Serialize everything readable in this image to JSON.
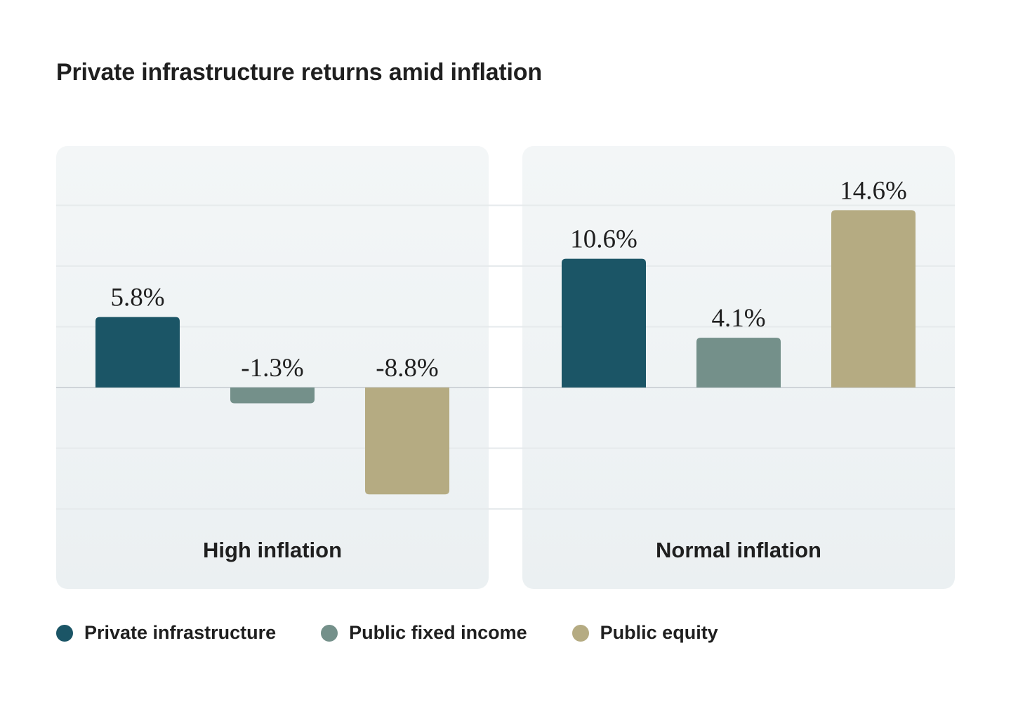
{
  "chart_data": {
    "type": "bar",
    "title": "Private infrastructure returns amid inflation",
    "categories": [
      "High inflation",
      "Normal inflation"
    ],
    "series": [
      {
        "name": "Private infrastructure",
        "color": "#1b5566",
        "values": [
          5.8,
          10.6
        ],
        "labels": [
          "5.8%",
          "10.6%"
        ]
      },
      {
        "name": "Public fixed income",
        "color": "#74908a",
        "values": [
          -1.3,
          4.1
        ],
        "labels": [
          "-1.3%",
          "4.1%"
        ]
      },
      {
        "name": "Public equity",
        "color": "#b5ab82",
        "values": [
          -8.8,
          14.6
        ],
        "labels": [
          "-8.8%",
          "14.6%"
        ]
      }
    ],
    "unit": "%",
    "ylim": [
      -12.5,
      20
    ],
    "gridlines": [
      15,
      10,
      5,
      0,
      -5,
      -10
    ],
    "grid": true,
    "legend_position": "bottom-left"
  }
}
